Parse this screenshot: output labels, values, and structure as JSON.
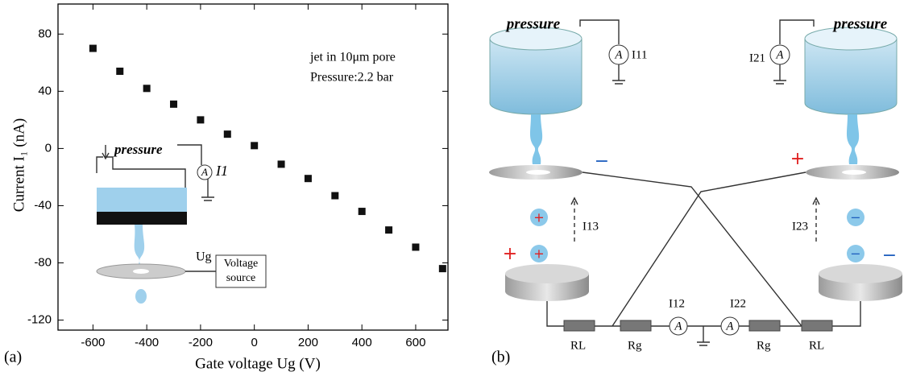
{
  "chart_data": {
    "type": "scatter",
    "x_label": "Gate voltage Ug (V)",
    "y_label": "Current I₁ (nA)",
    "annotations": [
      "jet in 10μm pore",
      "Pressure:2.2 bar"
    ],
    "x": [
      -600,
      -500,
      -400,
      -300,
      -200,
      -100,
      0,
      100,
      200,
      300,
      400,
      500,
      600,
      700
    ],
    "values": [
      70,
      54,
      42,
      31,
      20,
      10,
      2,
      -11,
      -21,
      -33,
      -44,
      -57,
      -69,
      -84
    ],
    "color": "#111111",
    "xlim": [
      -730,
      720
    ],
    "xticks": [
      -600,
      -400,
      -200,
      0,
      200,
      400,
      600
    ],
    "ylim": [
      -127,
      101
    ],
    "yticks": [
      -120,
      -80,
      -40,
      0,
      40,
      80
    ]
  },
  "panel_a": {
    "label": "(a)",
    "inset": {
      "pressure": "pressure",
      "ammeter": "A",
      "current": "I1",
      "gate": "Ug",
      "source": [
        "Voltage",
        "source"
      ]
    }
  },
  "panel_b": {
    "label": "(b)",
    "pressure_left": "pressure",
    "pressure_right": "pressure",
    "ammeter": "A",
    "currents": {
      "i11": "I11",
      "i21": "I21",
      "i13": "I13",
      "i23": "I23",
      "i12": "I12",
      "i22": "I22"
    },
    "resistors": [
      "RL",
      "Rg",
      "Rg",
      "RL"
    ],
    "plus": "+",
    "minus": "−"
  }
}
